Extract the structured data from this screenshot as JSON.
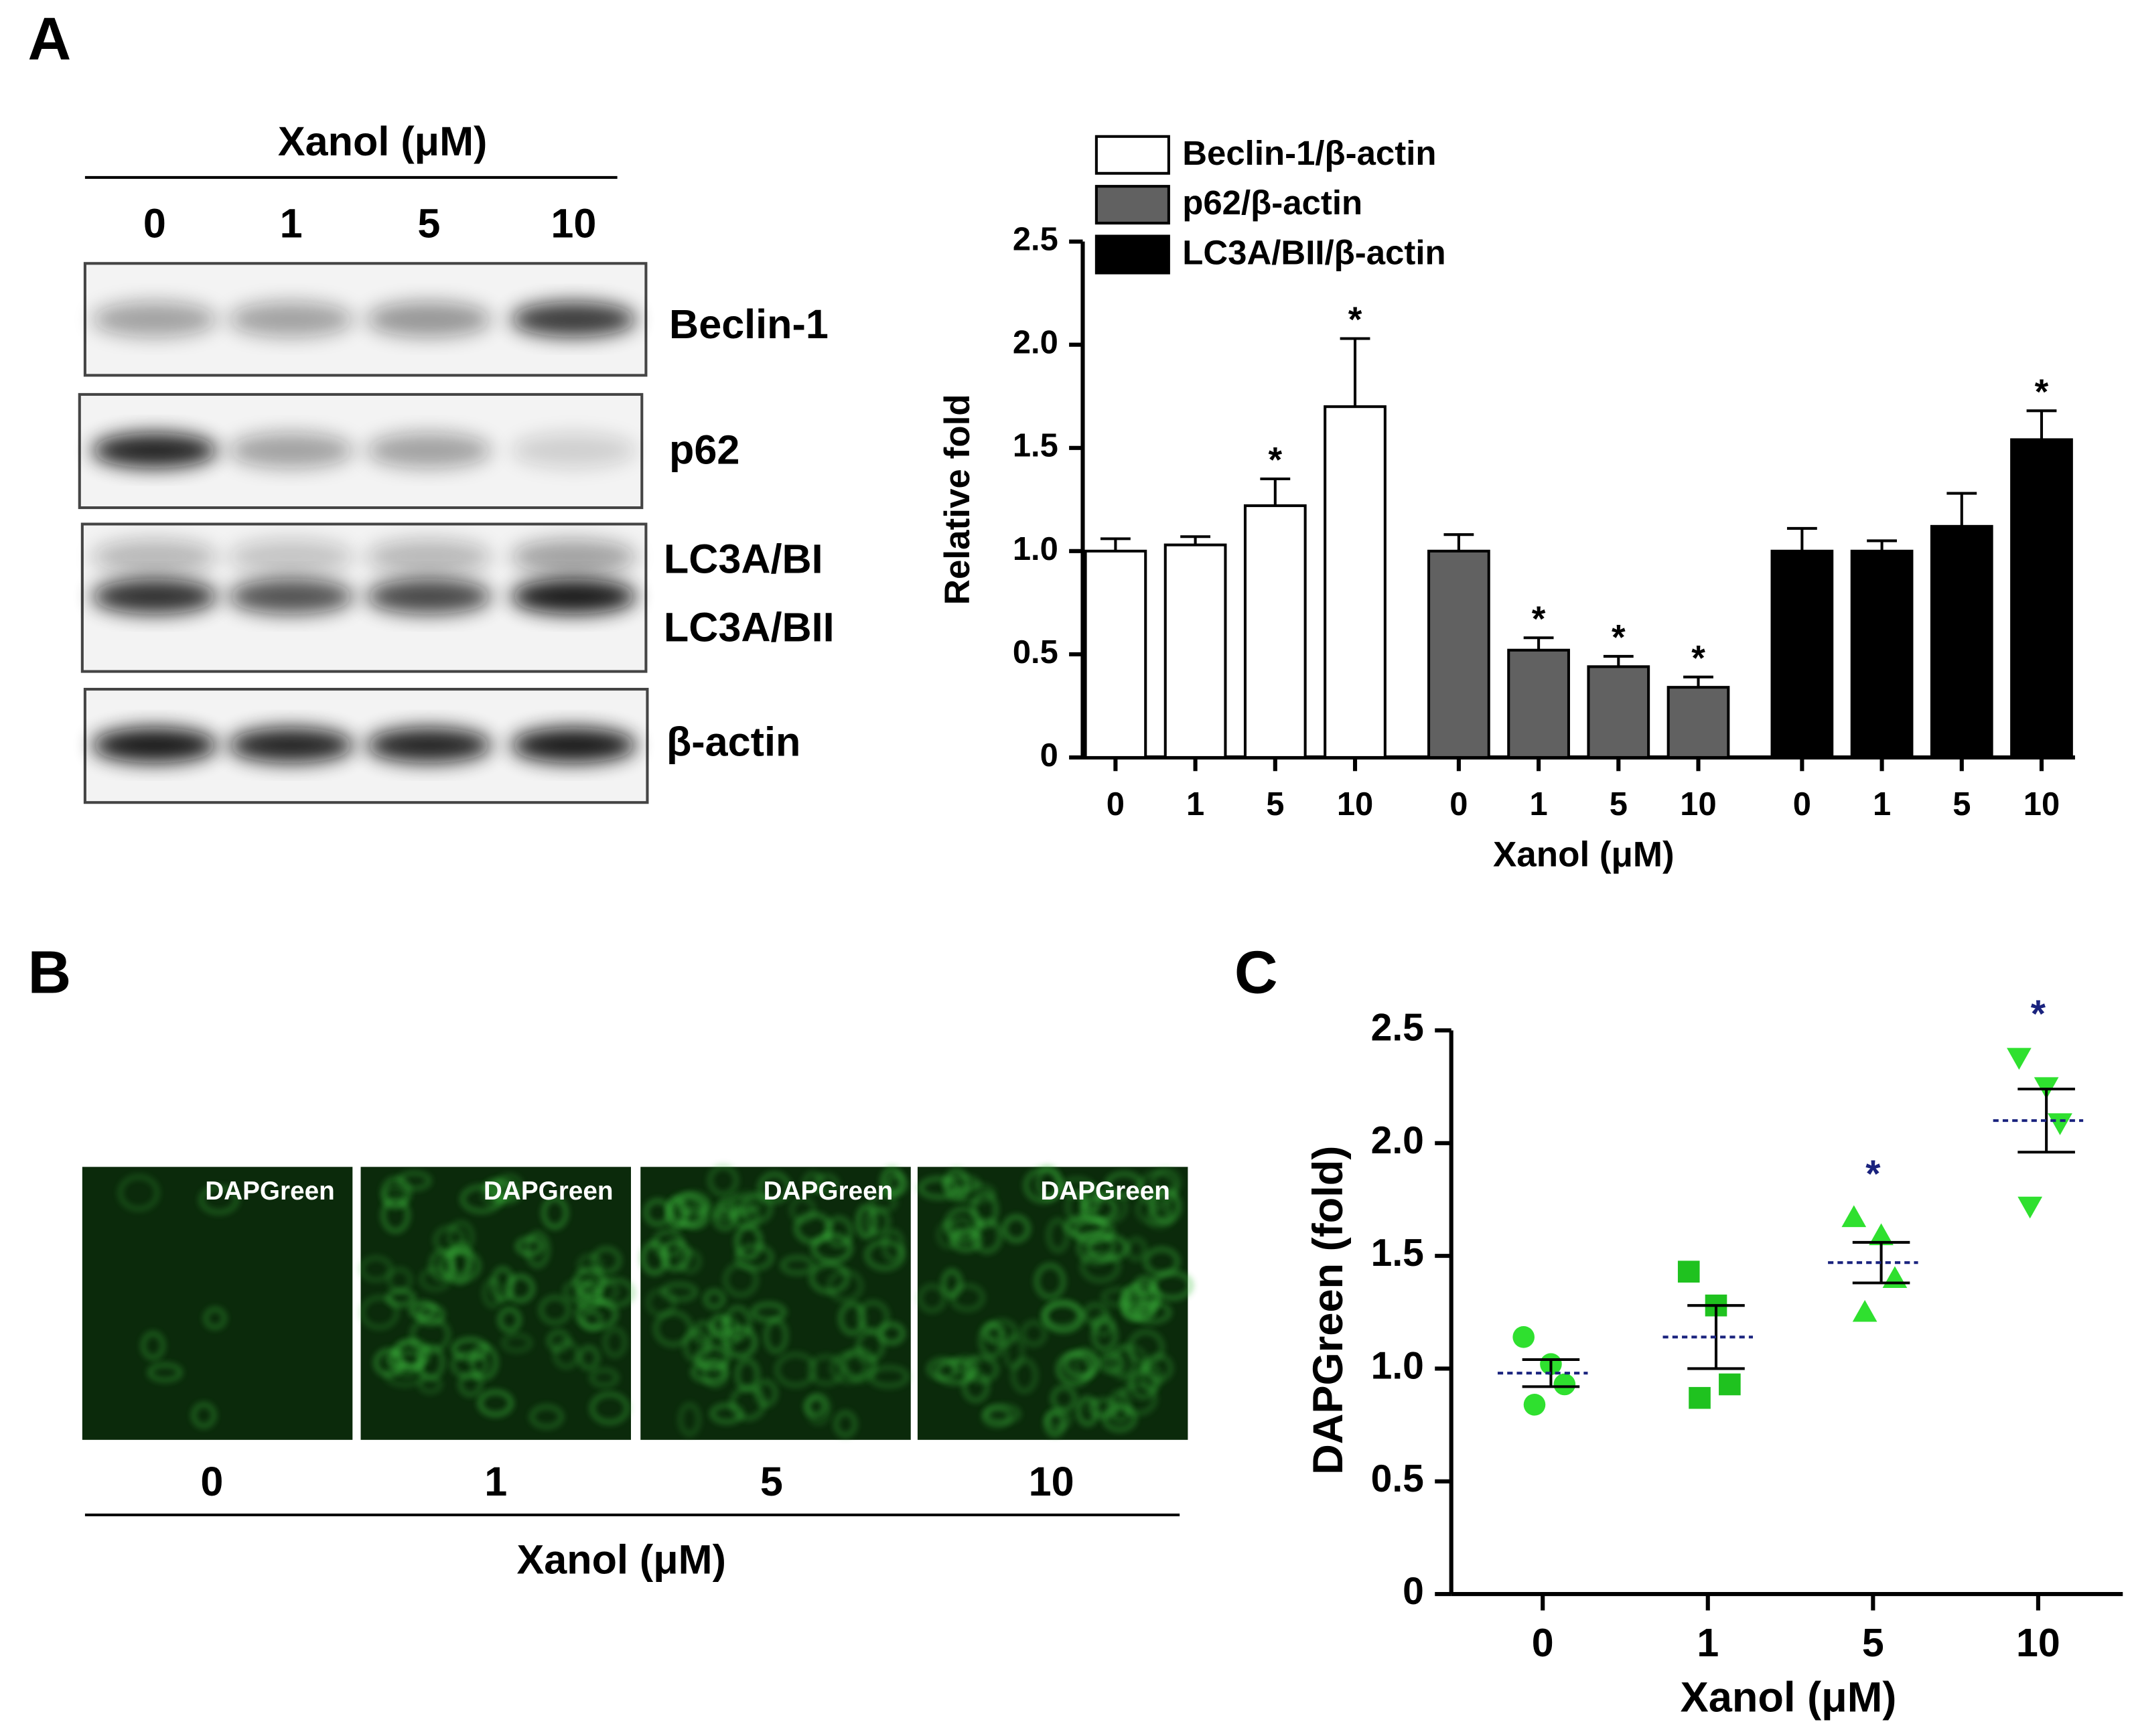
{
  "panels": {
    "a": "A",
    "b": "B",
    "c": "C"
  },
  "blot": {
    "title": "Xanol (μM)",
    "lanes": [
      "0",
      "1",
      "5",
      "10"
    ],
    "bands": [
      "Beclin-1",
      "p62",
      "LC3A/BI",
      "LC3A/BII",
      "β-actin"
    ]
  },
  "images": {
    "label": "DAPGreen",
    "lanes": [
      "0",
      "1",
      "5",
      "10"
    ],
    "title": "Xanol (μM)"
  },
  "chart_data": [
    {
      "type": "bar",
      "ylabel": "Relative fold",
      "xlabel": "Xanol (μM)",
      "categories": [
        "0",
        "1",
        "5",
        "10"
      ],
      "series": [
        {
          "name": "Beclin-1/β-actin",
          "color": "#ffffff",
          "values": [
            1.0,
            1.03,
            1.22,
            1.7
          ],
          "errors": [
            0.06,
            0.04,
            0.13,
            0.33
          ],
          "significance": [
            null,
            null,
            "*",
            "*"
          ]
        },
        {
          "name": "p62/β-actin",
          "color": "#616161",
          "values": [
            1.0,
            0.52,
            0.44,
            0.34
          ],
          "errors": [
            0.08,
            0.06,
            0.05,
            0.05
          ],
          "significance": [
            null,
            "*",
            "*",
            "*"
          ]
        },
        {
          "name": "LC3A/BII/β-actin",
          "color": "#000000",
          "values": [
            1.0,
            1.0,
            1.12,
            1.54
          ],
          "errors": [
            0.11,
            0.05,
            0.16,
            0.14
          ],
          "significance": [
            null,
            null,
            null,
            "*"
          ]
        }
      ],
      "ylim": [
        0,
        2.5
      ],
      "yticks": [
        0,
        0.5,
        {
          "value": 1,
          "label": "1.0"
        },
        1.5,
        {
          "value": 2,
          "label": "2.0"
        },
        2.5
      ],
      "legend": "top"
    },
    {
      "type": "scatter",
      "ylabel": "DAPGreen (fold)",
      "xlabel": "Xanol (μM)",
      "categories": [
        "0",
        "1",
        "5",
        "10"
      ],
      "groups": [
        {
          "marker": "circle",
          "color": "#2fe02f",
          "values": [
            1.14,
            1.02,
            0.93,
            0.84
          ],
          "mean": 0.98,
          "sem": 0.06
        },
        {
          "marker": "square",
          "color": "#1fc21f",
          "values": [
            1.43,
            1.28,
            0.93,
            0.87
          ],
          "mean": 1.14,
          "sem": 0.14
        },
        {
          "marker": "triangle-up",
          "color": "#2fe02f",
          "values": [
            1.67,
            1.59,
            1.4,
            1.25
          ],
          "mean": 1.47,
          "sem": 0.09
        },
        {
          "marker": "triangle-down",
          "color": "#2fe02f",
          "values": [
            2.38,
            2.25,
            2.09,
            1.72
          ],
          "mean": 2.1,
          "sem": 0.14
        }
      ],
      "significance": [
        null,
        null,
        "*",
        "*"
      ],
      "mean_color": "#1a237e",
      "ylim": [
        0,
        2.5
      ],
      "yticks": [
        0,
        0.5,
        {
          "value": 1,
          "label": "1.0"
        },
        1.5,
        {
          "value": 2,
          "label": "2.0"
        },
        2.5
      ]
    }
  ]
}
